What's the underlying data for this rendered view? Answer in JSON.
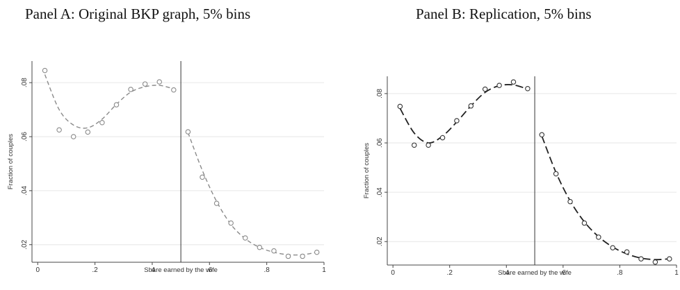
{
  "chart_data": [
    {
      "type": "scatter",
      "title": "Panel A: Original BKP graph, 5% bins",
      "xlabel": "Share earned by the wife",
      "ylabel": "Fraction of couples",
      "xlim": [
        -0.02,
        1.0
      ],
      "ylim": [
        0.0135,
        0.088
      ],
      "xticks": [
        0,
        0.2,
        0.4,
        0.6,
        0.8,
        1
      ],
      "xtick_labels": [
        "0",
        ".2",
        ".4",
        ".6",
        ".8",
        "1"
      ],
      "yticks": [
        0.02,
        0.04,
        0.06,
        0.08
      ],
      "ytick_labels": [
        ".02",
        ".04",
        ".06",
        ".08"
      ],
      "threshold": 0.5,
      "grid": true,
      "style": "light",
      "points": {
        "x": [
          0.025,
          0.075,
          0.125,
          0.175,
          0.225,
          0.275,
          0.325,
          0.375,
          0.425,
          0.475,
          0.525,
          0.575,
          0.625,
          0.675,
          0.725,
          0.775,
          0.825,
          0.875,
          0.925,
          0.975
        ],
        "y": [
          0.0845,
          0.0625,
          0.06,
          0.0617,
          0.0652,
          0.0718,
          0.0775,
          0.0795,
          0.0803,
          0.0773,
          0.0618,
          0.045,
          0.0353,
          0.028,
          0.0225,
          0.019,
          0.0177,
          0.0157,
          0.0157,
          0.0172
        ]
      },
      "fit_left": {
        "x": [
          0.025,
          0.075,
          0.125,
          0.175,
          0.225,
          0.275,
          0.325,
          0.375,
          0.425,
          0.475
        ],
        "y": [
          0.083,
          0.07,
          0.0643,
          0.0633,
          0.0665,
          0.072,
          0.0765,
          0.0785,
          0.079,
          0.0777
        ]
      },
      "fit_right": {
        "x": [
          0.525,
          0.575,
          0.625,
          0.675,
          0.725,
          0.775,
          0.825,
          0.875,
          0.925,
          0.975
        ],
        "y": [
          0.0615,
          0.0475,
          0.036,
          0.0275,
          0.0222,
          0.019,
          0.0172,
          0.0163,
          0.0163,
          0.0172
        ]
      }
    },
    {
      "type": "scatter",
      "title": "Panel B: Replication, 5% bins",
      "xlabel": "Share earned by the wife",
      "ylabel": "Fraction of couples",
      "xlim": [
        -0.02,
        1.0
      ],
      "ylim": [
        0.0105,
        0.087
      ],
      "xticks": [
        0,
        0.2,
        0.4,
        0.6,
        0.8,
        1
      ],
      "xtick_labels": [
        "0",
        ".2",
        ".4",
        ".6",
        ".8",
        "1"
      ],
      "yticks": [
        0.02,
        0.04,
        0.06,
        0.08
      ],
      "ytick_labels": [
        ".02",
        ".04",
        ".06",
        ".08"
      ],
      "threshold": 0.5,
      "grid": true,
      "style": "dark",
      "points": {
        "x": [
          0.025,
          0.075,
          0.125,
          0.175,
          0.225,
          0.275,
          0.325,
          0.375,
          0.425,
          0.475,
          0.525,
          0.575,
          0.625,
          0.675,
          0.725,
          0.775,
          0.825,
          0.875,
          0.925,
          0.975
        ],
        "y": [
          0.0748,
          0.0591,
          0.0591,
          0.0621,
          0.069,
          0.075,
          0.0818,
          0.0833,
          0.0847,
          0.082,
          0.0633,
          0.0475,
          0.0362,
          0.0275,
          0.0218,
          0.0175,
          0.0158,
          0.013,
          0.0117,
          0.013
        ]
      },
      "fit_left": {
        "x": [
          0.025,
          0.075,
          0.125,
          0.175,
          0.225,
          0.275,
          0.325,
          0.375,
          0.425,
          0.475
        ],
        "y": [
          0.074,
          0.064,
          0.06,
          0.0628,
          0.0685,
          0.075,
          0.0805,
          0.0832,
          0.0835,
          0.0818
        ]
      },
      "fit_right": {
        "x": [
          0.525,
          0.575,
          0.625,
          0.675,
          0.725,
          0.775,
          0.825,
          0.875,
          0.925,
          0.975
        ],
        "y": [
          0.0628,
          0.048,
          0.0365,
          0.028,
          0.022,
          0.0178,
          0.015,
          0.0133,
          0.0127,
          0.013
        ]
      }
    }
  ]
}
